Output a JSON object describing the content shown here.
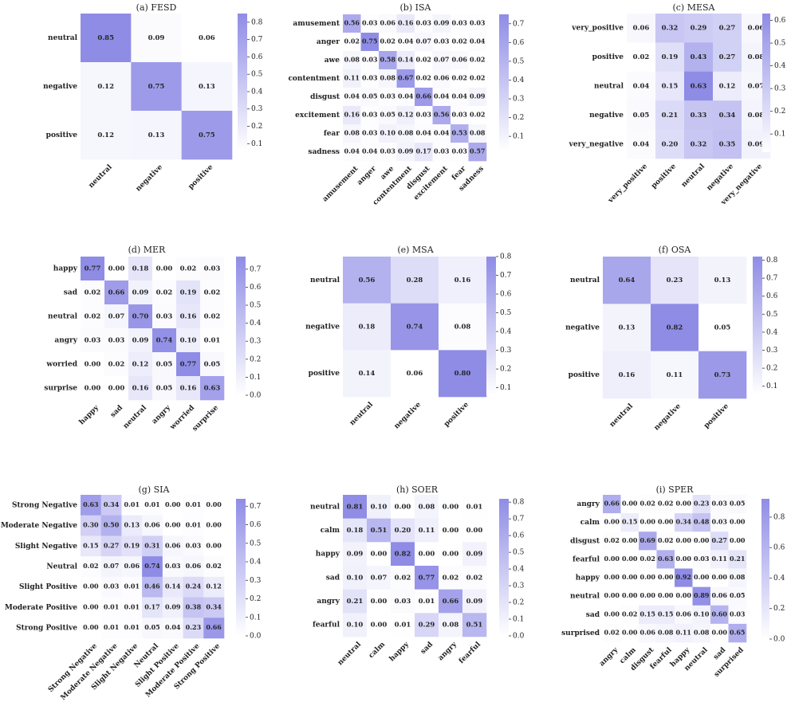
{
  "colorscale": {
    "low": "#ffffff",
    "high": "#8f8ce6"
  },
  "chart_data": [
    {
      "type": "heatmap",
      "title": "(a) FESD",
      "labels": [
        "neutral",
        "negative",
        "positive"
      ],
      "values": [
        [
          0.85,
          0.09,
          0.06
        ],
        [
          0.12,
          0.75,
          0.13
        ],
        [
          0.12,
          0.13,
          0.75
        ]
      ],
      "colorbar": {
        "ticks": [
          "0.1",
          "0.2",
          "0.3",
          "0.4",
          "0.5",
          "0.6",
          "0.7",
          "0.8"
        ],
        "range": [
          0.06,
          0.85
        ]
      }
    },
    {
      "type": "heatmap",
      "title": "(b) ISA",
      "labels": [
        "amusement",
        "anger",
        "awe",
        "contentment",
        "disgust",
        "excitement",
        "fear",
        "sadness"
      ],
      "values": [
        [
          0.56,
          0.03,
          0.06,
          0.16,
          0.03,
          0.09,
          0.03,
          0.03
        ],
        [
          0.02,
          0.75,
          0.02,
          0.04,
          0.07,
          0.03,
          0.02,
          0.04
        ],
        [
          0.08,
          0.03,
          0.58,
          0.14,
          0.02,
          0.07,
          0.06,
          0.02
        ],
        [
          0.11,
          0.03,
          0.08,
          0.67,
          0.02,
          0.06,
          0.02,
          0.02
        ],
        [
          0.04,
          0.05,
          0.03,
          0.04,
          0.66,
          0.04,
          0.04,
          0.09
        ],
        [
          0.16,
          0.03,
          0.05,
          0.12,
          0.03,
          0.56,
          0.03,
          0.02
        ],
        [
          0.08,
          0.03,
          0.1,
          0.08,
          0.04,
          0.04,
          0.53,
          0.08
        ],
        [
          0.04,
          0.04,
          0.03,
          0.09,
          0.17,
          0.03,
          0.03,
          0.57
        ]
      ],
      "colorbar": {
        "ticks": [
          "0.1",
          "0.2",
          "0.3",
          "0.4",
          "0.5",
          "0.6",
          "0.7"
        ],
        "range": [
          0.02,
          0.75
        ]
      }
    },
    {
      "type": "heatmap",
      "title": "(c) MESA",
      "labels": [
        "very_positive",
        "positive",
        "neutral",
        "negative",
        "very_negative"
      ],
      "values": [
        [
          0.06,
          0.32,
          0.29,
          0.27,
          0.06
        ],
        [
          0.02,
          0.19,
          0.43,
          0.27,
          0.08
        ],
        [
          0.04,
          0.15,
          0.63,
          0.12,
          0.07
        ],
        [
          0.05,
          0.21,
          0.33,
          0.34,
          0.08
        ],
        [
          0.04,
          0.2,
          0.32,
          0.35,
          0.09
        ]
      ],
      "colorbar": {
        "ticks": [
          "0.1",
          "0.2",
          "0.3",
          "0.4",
          "0.5",
          "0.6"
        ],
        "range": [
          0.02,
          0.63
        ]
      }
    },
    {
      "type": "heatmap",
      "title": "(d) MER",
      "labels": [
        "happy",
        "sad",
        "neutral",
        "angry",
        "worried",
        "surprise"
      ],
      "values": [
        [
          0.77,
          0.0,
          0.18,
          0.0,
          0.02,
          0.03
        ],
        [
          0.02,
          0.66,
          0.09,
          0.02,
          0.19,
          0.02
        ],
        [
          0.02,
          0.07,
          0.7,
          0.03,
          0.16,
          0.02
        ],
        [
          0.03,
          0.03,
          0.09,
          0.74,
          0.1,
          0.01
        ],
        [
          0.0,
          0.02,
          0.12,
          0.05,
          0.77,
          0.05
        ],
        [
          0.0,
          0.0,
          0.16,
          0.05,
          0.16,
          0.63
        ]
      ],
      "colorbar": {
        "ticks": [
          "0.0",
          "0.1",
          "0.2",
          "0.3",
          "0.4",
          "0.5",
          "0.6",
          "0.7"
        ],
        "range": [
          0.0,
          0.77
        ]
      }
    },
    {
      "type": "heatmap",
      "title": "(e) MSA",
      "labels": [
        "neutral",
        "negative",
        "positive"
      ],
      "values": [
        [
          0.56,
          0.28,
          0.16
        ],
        [
          0.18,
          0.74,
          0.08
        ],
        [
          0.14,
          0.06,
          0.8
        ]
      ],
      "colorbar": {
        "ticks": [
          "0.1",
          "0.2",
          "0.3",
          "0.4",
          "0.5",
          "0.6",
          "0.7",
          "0.8"
        ],
        "range": [
          0.06,
          0.8
        ]
      }
    },
    {
      "type": "heatmap",
      "title": "(f) OSA",
      "labels": [
        "neutral",
        "negative",
        "positive"
      ],
      "values": [
        [
          0.64,
          0.23,
          0.13
        ],
        [
          0.13,
          0.82,
          0.05
        ],
        [
          0.16,
          0.11,
          0.73
        ]
      ],
      "colorbar": {
        "ticks": [
          "0.1",
          "0.2",
          "0.3",
          "0.4",
          "0.5",
          "0.6",
          "0.7",
          "0.8"
        ],
        "range": [
          0.05,
          0.82
        ]
      }
    },
    {
      "type": "heatmap",
      "title": "(g) SIA",
      "labels": [
        "Strong Negative",
        "Moderate Negative",
        "Slight Negative",
        "Neutral",
        "Slight Positive",
        "Moderate Positive",
        "Strong Positive"
      ],
      "values": [
        [
          0.63,
          0.34,
          0.01,
          0.01,
          0.0,
          0.01,
          0.0
        ],
        [
          0.3,
          0.5,
          0.13,
          0.06,
          0.0,
          0.01,
          0.0
        ],
        [
          0.15,
          0.27,
          0.19,
          0.31,
          0.06,
          0.03,
          0.0
        ],
        [
          0.02,
          0.07,
          0.06,
          0.74,
          0.03,
          0.06,
          0.02
        ],
        [
          0.0,
          0.03,
          0.01,
          0.46,
          0.14,
          0.24,
          0.12
        ],
        [
          0.0,
          0.01,
          0.01,
          0.17,
          0.09,
          0.38,
          0.34
        ],
        [
          0.0,
          0.01,
          0.01,
          0.05,
          0.04,
          0.23,
          0.66
        ]
      ],
      "colorbar": {
        "ticks": [
          "0.0",
          "0.1",
          "0.2",
          "0.3",
          "0.4",
          "0.5",
          "0.6",
          "0.7"
        ],
        "range": [
          0.0,
          0.74
        ]
      }
    },
    {
      "type": "heatmap",
      "title": "(h) SOER",
      "labels": [
        "neutral",
        "calm",
        "happy",
        "sad",
        "angry",
        "fearful"
      ],
      "values": [
        [
          0.81,
          0.1,
          0.0,
          0.08,
          0.0,
          0.01
        ],
        [
          0.18,
          0.51,
          0.2,
          0.11,
          0.0,
          0.0
        ],
        [
          0.09,
          0.0,
          0.82,
          0.0,
          0.0,
          0.09
        ],
        [
          0.1,
          0.07,
          0.02,
          0.77,
          0.02,
          0.02
        ],
        [
          0.21,
          0.0,
          0.03,
          0.01,
          0.66,
          0.09
        ],
        [
          0.1,
          0.0,
          0.01,
          0.29,
          0.08,
          0.51
        ]
      ],
      "colorbar": {
        "ticks": [
          "0.0",
          "0.1",
          "0.2",
          "0.3",
          "0.4",
          "0.5",
          "0.6",
          "0.7",
          "0.8"
        ],
        "range": [
          0.0,
          0.82
        ]
      }
    },
    {
      "type": "heatmap",
      "title": "(i) SPER",
      "labels": [
        "angry",
        "calm",
        "disgust",
        "fearful",
        "happy",
        "neutral",
        "sad",
        "surprised"
      ],
      "values": [
        [
          0.66,
          0.0,
          0.02,
          0.02,
          0.0,
          0.23,
          0.03,
          0.05
        ],
        [
          0.0,
          0.15,
          0.0,
          0.0,
          0.34,
          0.48,
          0.03,
          0.0
        ],
        [
          0.02,
          0.0,
          0.69,
          0.02,
          0.0,
          0.0,
          0.27,
          0.0
        ],
        [
          0.0,
          0.0,
          0.02,
          0.63,
          0.0,
          0.03,
          0.11,
          0.21
        ],
        [
          0.0,
          0.0,
          0.0,
          0.0,
          0.92,
          0.0,
          0.0,
          0.08
        ],
        [
          0.0,
          0.0,
          0.0,
          0.0,
          0.0,
          0.89,
          0.06,
          0.05
        ],
        [
          0.0,
          0.02,
          0.15,
          0.15,
          0.06,
          0.1,
          0.6,
          0.03
        ],
        [
          0.02,
          0.0,
          0.06,
          0.08,
          0.11,
          0.08,
          0.0,
          0.65
        ]
      ],
      "colorbar": {
        "ticks": [
          "0.0",
          "0.2",
          "0.4",
          "0.6",
          "0.8"
        ],
        "range": [
          0.0,
          0.92
        ]
      }
    }
  ]
}
